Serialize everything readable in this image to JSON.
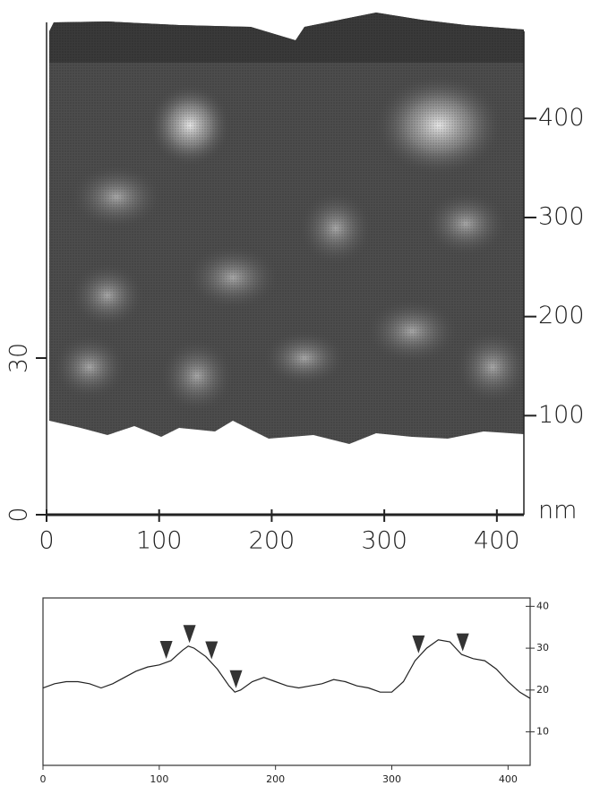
{
  "chart_data": [
    {
      "type": "surface",
      "xlim": [
        0,
        424
      ],
      "xticks": [
        0,
        100,
        200,
        300,
        400
      ],
      "ylim": [
        0,
        96
      ],
      "yticks": [
        0,
        30
      ],
      "y2lim": [
        0,
        506
      ],
      "y2ticks": [
        100,
        200,
        300,
        400
      ],
      "y2label": "nm"
    },
    {
      "type": "line",
      "x": [
        0,
        10,
        20,
        30,
        40,
        50,
        60,
        70,
        80,
        90,
        100,
        110,
        120,
        125,
        130,
        140,
        150,
        160,
        165,
        170,
        180,
        190,
        200,
        210,
        220,
        230,
        240,
        250,
        260,
        270,
        280,
        290,
        300,
        310,
        320,
        330,
        340,
        350,
        360,
        370,
        380,
        390,
        400,
        410,
        419
      ],
      "values": [
        20.5,
        21.5,
        22,
        22,
        21.5,
        20.5,
        21.5,
        23,
        24.5,
        25.5,
        26,
        27,
        29.5,
        30.5,
        30,
        28,
        25,
        21,
        19.5,
        20,
        22,
        23,
        22,
        21,
        20.5,
        21,
        21.5,
        22.5,
        22,
        21,
        20.5,
        19.5,
        19.5,
        22,
        27,
        30,
        32,
        31.5,
        28.5,
        27.5,
        27,
        25,
        22,
        19.5,
        18
      ],
      "color": "#222222",
      "markers": [
        106,
        126,
        145,
        166,
        323,
        361
      ],
      "xlim": [
        0,
        419
      ],
      "xticks": [
        0,
        100,
        200,
        300,
        400
      ],
      "y2lim": [
        2,
        42
      ],
      "y2ticks": [
        10,
        20,
        30,
        40
      ]
    }
  ]
}
